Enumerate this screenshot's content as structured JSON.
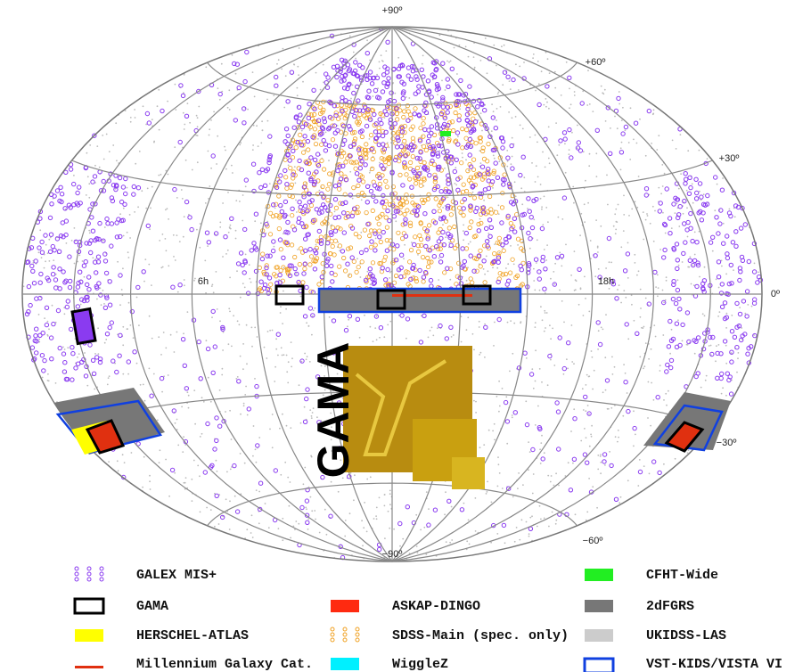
{
  "map": {
    "grid_labels": [
      "+90º",
      "+60º",
      "+30º",
      "0º",
      "−30º",
      "−60º",
      "−90º",
      "6h",
      "18h"
    ],
    "logo_text": "GAMA",
    "legend": [
      "GALEX MIS+",
      "GAMA",
      "HERSCHEL-ATLAS",
      "Millennium Galaxy Cat.",
      "ASKAP-DINGO",
      "SDSS-Main (spec. only)",
      "WiggleZ",
      "CFHT-Wide",
      "2dFGRS",
      "UKIDSS-LAS",
      "VST-KIDS/VISTA VI"
    ]
  }
}
